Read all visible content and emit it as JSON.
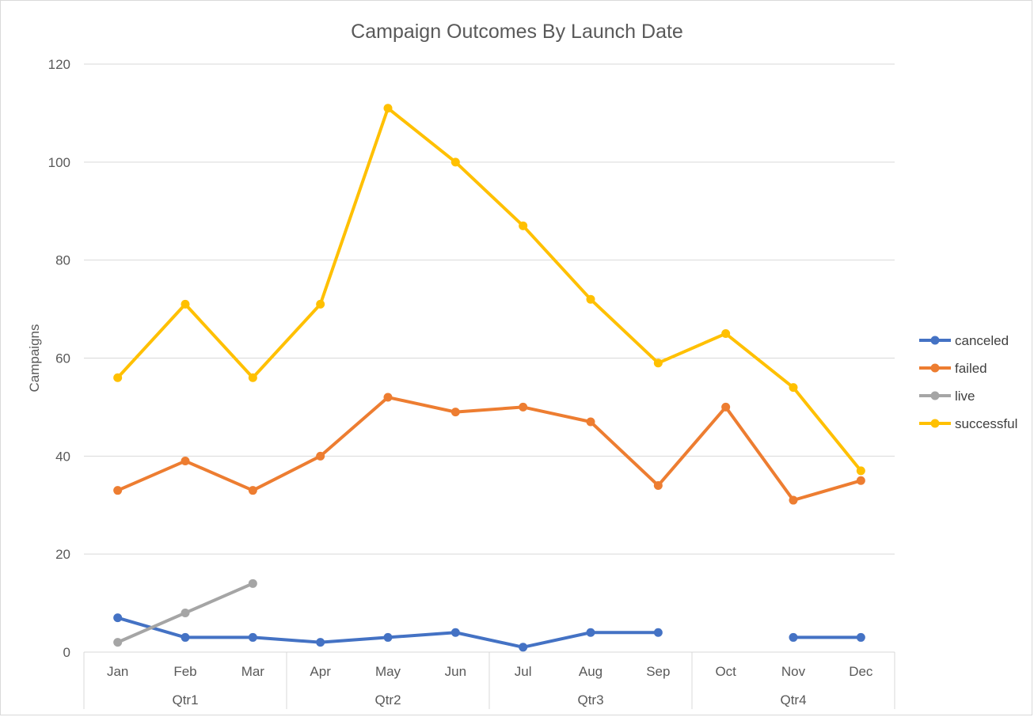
{
  "chart_data": {
    "type": "line",
    "title": "Campaign Outcomes By Launch Date",
    "xlabel": "",
    "ylabel": "Campaigns",
    "ylim": [
      0,
      120
    ],
    "yticks": [
      0,
      20,
      40,
      60,
      80,
      100,
      120
    ],
    "grid": true,
    "legend_position": "right",
    "categories": [
      "Jan",
      "Feb",
      "Mar",
      "Apr",
      "May",
      "Jun",
      "Jul",
      "Aug",
      "Sep",
      "Oct",
      "Nov",
      "Dec"
    ],
    "groups": [
      {
        "label": "Qtr1",
        "span": 3
      },
      {
        "label": "Qtr2",
        "span": 3
      },
      {
        "label": "Qtr3",
        "span": 3
      },
      {
        "label": "Qtr4",
        "span": 3
      }
    ],
    "series": [
      {
        "name": "canceled",
        "color": "#4472C4",
        "values": [
          7,
          3,
          3,
          2,
          3,
          4,
          1,
          4,
          4,
          null,
          3,
          3
        ]
      },
      {
        "name": "failed",
        "color": "#ED7D31",
        "values": [
          33,
          39,
          33,
          40,
          52,
          49,
          50,
          47,
          34,
          50,
          31,
          35
        ]
      },
      {
        "name": "live",
        "color": "#A5A5A5",
        "values": [
          2,
          8,
          14,
          null,
          null,
          null,
          null,
          null,
          null,
          null,
          null,
          null
        ]
      },
      {
        "name": "successful",
        "color": "#FFC000",
        "values": [
          56,
          71,
          56,
          71,
          111,
          100,
          87,
          72,
          59,
          65,
          54,
          37
        ]
      }
    ]
  }
}
